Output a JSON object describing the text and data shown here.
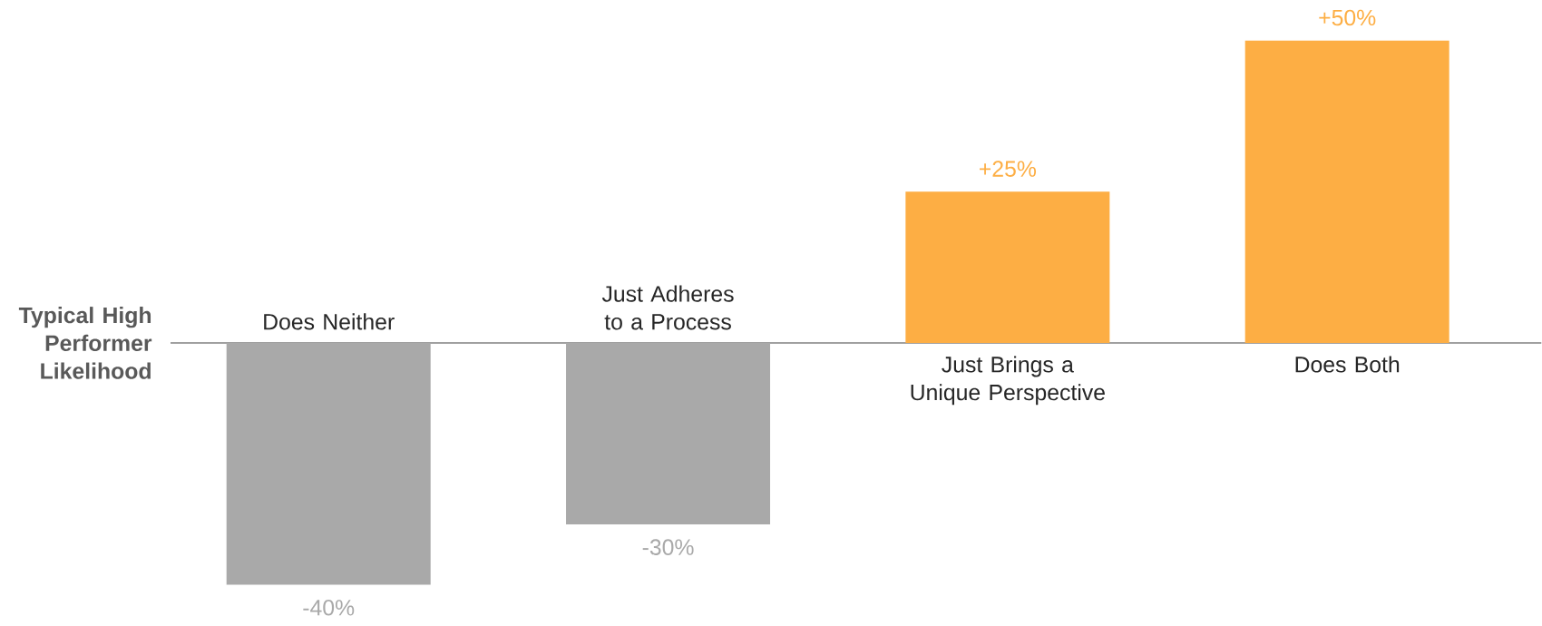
{
  "chart_data": {
    "type": "bar",
    "ylabel": "Typical High Performer Likelihood",
    "categories": [
      "Does Neither",
      "Just Adheres to a Process",
      "Just Brings a Unique Perspective",
      "Does Both"
    ],
    "values": [
      -40,
      -30,
      25,
      50
    ],
    "colors": [
      "#a9a9a9",
      "#a9a9a9",
      "#fdae44",
      "#fdae44"
    ],
    "value_labels": [
      "-40%",
      "-30%",
      "+25%",
      "+50%"
    ]
  }
}
